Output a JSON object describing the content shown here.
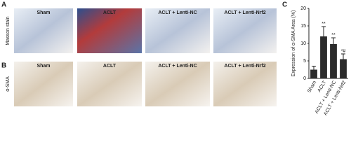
{
  "panels": {
    "A": "A",
    "B": "B",
    "C": "C"
  },
  "row_labels": [
    "Masson stain",
    "α-SMA"
  ],
  "image_titles": [
    "Sham",
    "ACLT",
    "ACLT + Lenti-NC",
    "ACLT + Lenti-Nrf2"
  ],
  "chart_data": {
    "type": "bar",
    "ylabel": "Expression of α-SMA Area (%)",
    "categories": [
      "Sham",
      "ACLT",
      "ACLT + Lenti-NC",
      "ACLT + Lenti-Nrf2"
    ],
    "values": [
      2.5,
      12,
      9.8,
      5.5
    ],
    "errors": [
      1,
      2.8,
      1.8,
      1.5
    ],
    "annotations": [
      "**",
      "**",
      "*#"
    ],
    "color": "#2b2b2b",
    "ylim": [
      0,
      20
    ],
    "yticks": [
      0,
      5,
      10,
      15,
      20
    ]
  }
}
